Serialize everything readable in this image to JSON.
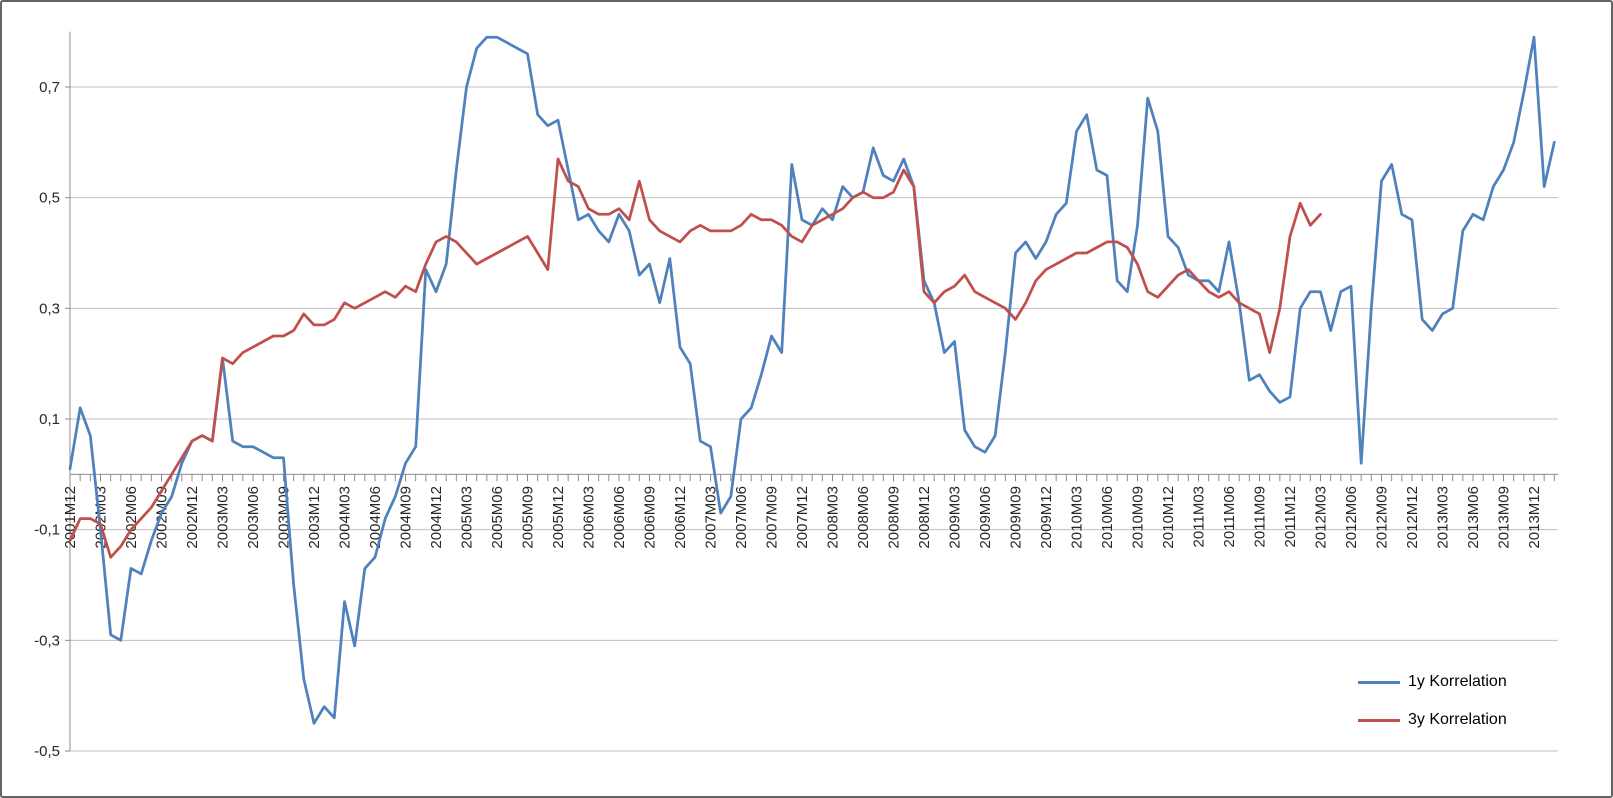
{
  "window": {
    "background": "#FFFFFF",
    "border_color": "#646464"
  },
  "chart_data": {
    "type": "line",
    "grid": true,
    "x_axis": {
      "start": "2001M12",
      "unit": "month",
      "months_per_tick": 3,
      "tick_labels": [
        "2001M12",
        "2002M03",
        "2002M06",
        "2002M09",
        "2002M12",
        "2003M03",
        "2003M06",
        "2003M09",
        "2003M12",
        "2004M03",
        "2004M06",
        "2004M09",
        "2004M12",
        "2005M03",
        "2005M06",
        "2005M09",
        "2005M12",
        "2006M03",
        "2006M06",
        "2006M09",
        "2006M12",
        "2007M03",
        "2007M06",
        "2007M09",
        "2007M12",
        "2008M03",
        "2008M06",
        "2008M09",
        "2008M12",
        "2009M03",
        "2009M06",
        "2009M09",
        "2009M12",
        "2010M03",
        "2010M06",
        "2010M09",
        "2010M12",
        "2011M03",
        "2011M06",
        "2011M09",
        "2011M12",
        "2012M03",
        "2012M06",
        "2012M09",
        "2012M12",
        "2013M03",
        "2013M06",
        "2013M09",
        "2013M12"
      ]
    },
    "y_axis": {
      "min": -0.5,
      "max": 0.8,
      "major_unit": 0.2,
      "tick_labels": [
        "0,7",
        "0,5",
        "0,3",
        "0,1",
        "-0,1",
        "-0,3",
        "-0,5"
      ],
      "tick_values": [
        0.7,
        0.5,
        0.3,
        0.1,
        -0.1,
        -0.3,
        -0.5
      ],
      "zero_axis": true
    },
    "legend": {
      "position": "bottom-right-inside",
      "entries": [
        "1y Korrelation",
        "3y Korrelation"
      ]
    },
    "colors": {
      "grid": "#BFBFBF",
      "axis": "#8C8C8C",
      "tick_text": "#262626"
    },
    "series": [
      {
        "name": "1y Korrelation",
        "color": "#4F81BD",
        "start_month": "2001M12",
        "monthly_values": [
          0.01,
          0.12,
          0.07,
          -0.1,
          -0.29,
          -0.3,
          -0.17,
          -0.18,
          -0.12,
          -0.07,
          -0.04,
          0.02,
          0.06,
          0.07,
          0.06,
          0.21,
          0.06,
          0.05,
          0.05,
          0.04,
          0.03,
          0.03,
          -0.2,
          -0.37,
          -0.45,
          -0.42,
          -0.44,
          -0.23,
          -0.31,
          -0.17,
          -0.15,
          -0.08,
          -0.04,
          0.02,
          0.05,
          0.37,
          0.33,
          0.38,
          0.55,
          0.7,
          0.77,
          0.79,
          0.79,
          0.78,
          0.77,
          0.76,
          0.65,
          0.63,
          0.64,
          0.55,
          0.46,
          0.47,
          0.44,
          0.42,
          0.47,
          0.44,
          0.36,
          0.38,
          0.31,
          0.39,
          0.23,
          0.2,
          0.06,
          0.05,
          -0.07,
          -0.04,
          0.1,
          0.12,
          0.18,
          0.25,
          0.22,
          0.56,
          0.46,
          0.45,
          0.48,
          0.46,
          0.52,
          0.5,
          0.51,
          0.59,
          0.54,
          0.53,
          0.57,
          0.52,
          0.35,
          0.31,
          0.22,
          0.24,
          0.08,
          0.05,
          0.04,
          0.07,
          0.22,
          0.4,
          0.42,
          0.39,
          0.42,
          0.47,
          0.49,
          0.62,
          0.65,
          0.55,
          0.54,
          0.35,
          0.33,
          0.45,
          0.68,
          0.62,
          0.43,
          0.41,
          0.36,
          0.35,
          0.35,
          0.33,
          0.42,
          0.31,
          0.17,
          0.18,
          0.15,
          0.13,
          0.14,
          0.3,
          0.33,
          0.33,
          0.26,
          0.33,
          0.34,
          0.02,
          0.3,
          0.53,
          0.56,
          0.47,
          0.46,
          0.28,
          0.26,
          0.29,
          0.3,
          0.44,
          0.47,
          0.46,
          0.52,
          0.55,
          0.6,
          0.69,
          0.79,
          0.52,
          0.6
        ]
      },
      {
        "name": "3y Korrelation",
        "color": "#C0504D",
        "start_month": "2001M12",
        "monthly_values": [
          -0.12,
          -0.08,
          -0.08,
          -0.09,
          -0.15,
          -0.13,
          -0.1,
          -0.08,
          -0.06,
          -0.03,
          0.0,
          0.03,
          0.06,
          0.07,
          0.06,
          0.21,
          0.2,
          0.22,
          0.23,
          0.24,
          0.25,
          0.25,
          0.26,
          0.29,
          0.27,
          0.27,
          0.28,
          0.31,
          0.3,
          0.31,
          0.32,
          0.33,
          0.32,
          0.34,
          0.33,
          0.38,
          0.42,
          0.43,
          0.42,
          0.4,
          0.38,
          0.39,
          0.4,
          0.41,
          0.42,
          0.43,
          0.4,
          0.37,
          0.57,
          0.53,
          0.52,
          0.48,
          0.47,
          0.47,
          0.48,
          0.46,
          0.53,
          0.46,
          0.44,
          0.43,
          0.42,
          0.44,
          0.45,
          0.44,
          0.44,
          0.44,
          0.45,
          0.47,
          0.46,
          0.46,
          0.45,
          0.43,
          0.42,
          0.45,
          0.46,
          0.47,
          0.48,
          0.5,
          0.51,
          0.5,
          0.5,
          0.51,
          0.55,
          0.52,
          0.33,
          0.31,
          0.33,
          0.34,
          0.36,
          0.33,
          0.32,
          0.31,
          0.3,
          0.28,
          0.31,
          0.35,
          0.37,
          0.38,
          0.39,
          0.4,
          0.4,
          0.41,
          0.42,
          0.42,
          0.41,
          0.38,
          0.33,
          0.32,
          0.34,
          0.36,
          0.37,
          0.35,
          0.33,
          0.32,
          0.33,
          0.31,
          0.3,
          0.29,
          0.22,
          0.3,
          0.43,
          0.49,
          0.45,
          0.47
        ]
      }
    ]
  }
}
